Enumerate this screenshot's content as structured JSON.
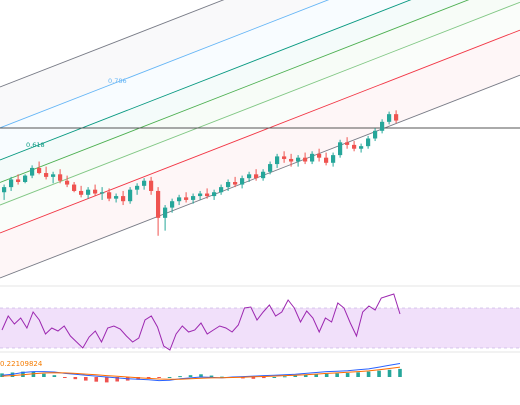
{
  "colors": {
    "up": "#26a69a",
    "down": "#ef5350",
    "rsi_line": "#9c27b0",
    "rsi_band": "#f1e0fa",
    "macd_line": "#2962ff",
    "signal_line": "#ff6d00",
    "hline": "#555555",
    "fib_0": "#787b86",
    "fib_236": "#f23645",
    "fib_382": "#81c784",
    "fib_5": "#4caf50",
    "fib_618": "#089981",
    "fib_786": "#64b5f6",
    "fib_1": "#787b86"
  },
  "fib_labels": {
    "l618": "0.618",
    "l786": "0.786"
  },
  "macd_value_label": "0.22109824",
  "chart_data": [
    {
      "type": "candlestick",
      "title": "",
      "price_line_visible": true,
      "fib_channel_levels": [
        0,
        0.236,
        0.382,
        0.5,
        0.618,
        0.786,
        1
      ],
      "fib_levels_labeled": [
        "0.618",
        "0.786"
      ],
      "candles": [
        [
          4.2,
          4.8,
          3.6,
          4.6
        ],
        [
          4.6,
          5.4,
          4.3,
          5.2
        ],
        [
          5.2,
          5.6,
          4.8,
          5.0
        ],
        [
          5.0,
          5.6,
          4.9,
          5.5
        ],
        [
          5.5,
          6.3,
          5.3,
          6.1
        ],
        [
          6.1,
          6.6,
          5.6,
          5.7
        ],
        [
          5.7,
          6.2,
          5.2,
          5.4
        ],
        [
          5.4,
          5.8,
          4.9,
          5.6
        ],
        [
          5.6,
          6.0,
          4.9,
          5.1
        ],
        [
          5.1,
          5.5,
          4.6,
          4.8
        ],
        [
          4.8,
          5.0,
          4.2,
          4.3
        ],
        [
          4.3,
          4.7,
          3.8,
          4.0
        ],
        [
          4.0,
          4.6,
          3.7,
          4.4
        ],
        [
          4.4,
          4.8,
          3.9,
          4.1
        ],
        [
          4.1,
          4.6,
          3.6,
          4.2
        ],
        [
          4.2,
          4.5,
          3.5,
          3.7
        ],
        [
          3.7,
          4.1,
          3.4,
          3.9
        ],
        [
          3.9,
          4.3,
          3.2,
          3.5
        ],
        [
          3.5,
          4.6,
          3.3,
          4.4
        ],
        [
          4.4,
          4.9,
          4.0,
          4.7
        ],
        [
          4.7,
          5.3,
          4.4,
          5.1
        ],
        [
          5.1,
          5.4,
          4.0,
          4.3
        ],
        [
          4.3,
          4.6,
          0.8,
          2.2
        ],
        [
          2.2,
          3.2,
          1.2,
          3.0
        ],
        [
          3.0,
          3.7,
          2.6,
          3.5
        ],
        [
          3.5,
          4.0,
          3.2,
          3.8
        ],
        [
          3.8,
          4.2,
          3.4,
          3.6
        ],
        [
          3.6,
          4.1,
          3.3,
          3.9
        ],
        [
          3.9,
          4.3,
          3.6,
          4.1
        ],
        [
          4.1,
          4.5,
          3.7,
          3.9
        ],
        [
          3.9,
          4.4,
          3.6,
          4.2
        ],
        [
          4.2,
          4.8,
          4.0,
          4.6
        ],
        [
          4.6,
          5.2,
          4.3,
          5.0
        ],
        [
          5.0,
          5.4,
          4.6,
          4.8
        ],
        [
          4.8,
          5.5,
          4.5,
          5.3
        ],
        [
          5.3,
          5.8,
          5.0,
          5.6
        ],
        [
          5.6,
          6.0,
          5.1,
          5.3
        ],
        [
          5.3,
          6.0,
          5.1,
          5.8
        ],
        [
          5.8,
          6.6,
          5.6,
          6.4
        ],
        [
          6.4,
          7.2,
          6.1,
          7.0
        ],
        [
          7.0,
          7.4,
          6.5,
          6.8
        ],
        [
          6.8,
          7.2,
          6.2,
          6.6
        ],
        [
          6.6,
          7.1,
          6.2,
          6.9
        ],
        [
          6.9,
          7.3,
          6.4,
          6.6
        ],
        [
          6.6,
          7.4,
          6.4,
          7.2
        ],
        [
          7.2,
          7.6,
          6.6,
          6.9
        ],
        [
          6.9,
          7.3,
          6.3,
          6.5
        ],
        [
          6.5,
          7.3,
          6.2,
          7.1
        ],
        [
          7.1,
          8.3,
          6.9,
          8.1
        ],
        [
          8.1,
          8.5,
          7.6,
          7.9
        ],
        [
          7.9,
          8.2,
          7.4,
          7.6
        ],
        [
          7.6,
          8.0,
          7.3,
          7.8
        ],
        [
          7.8,
          8.6,
          7.6,
          8.4
        ],
        [
          8.4,
          9.2,
          8.2,
          9.0
        ],
        [
          9.0,
          9.9,
          8.8,
          9.7
        ],
        [
          9.7,
          10.5,
          9.5,
          10.3
        ],
        [
          10.3,
          10.6,
          9.6,
          9.8
        ]
      ]
    },
    {
      "type": "line",
      "title": "",
      "band": [
        30,
        70
      ],
      "ylim": [
        0,
        100
      ],
      "values": [
        48,
        62,
        54,
        60,
        50,
        66,
        58,
        44,
        50,
        47,
        52,
        42,
        36,
        30,
        41,
        47,
        36,
        50,
        52,
        49,
        42,
        36,
        40,
        58,
        62,
        51,
        32,
        28,
        44,
        52,
        46,
        48,
        55,
        44,
        48,
        52,
        50,
        46,
        53,
        70,
        71,
        58,
        66,
        73,
        62,
        66,
        78,
        70,
        56,
        67,
        60,
        46,
        60,
        56,
        75,
        70,
        55,
        42,
        66,
        72,
        68,
        80,
        82,
        84,
        64
      ]
    },
    {
      "type": "line",
      "title": "",
      "macd": [
        0.1,
        0.15,
        0.25,
        0.3,
        0.3,
        0.28,
        0.2,
        0.15,
        0.1,
        0.05,
        0.0,
        -0.05,
        -0.1,
        -0.12,
        -0.15,
        -0.2,
        -0.18,
        -0.1,
        -0.05,
        0.0,
        -0.02,
        -0.05,
        0.0,
        0.02,
        0.05,
        0.08,
        0.1,
        0.12,
        0.15,
        0.2,
        0.25,
        0.3,
        0.32,
        0.35,
        0.4,
        0.45,
        0.55,
        0.65,
        0.75
      ],
      "signal": [
        0.05,
        0.08,
        0.12,
        0.18,
        0.22,
        0.24,
        0.23,
        0.2,
        0.16,
        0.12,
        0.08,
        0.04,
        0.0,
        -0.04,
        -0.08,
        -0.11,
        -0.13,
        -0.12,
        -0.1,
        -0.07,
        -0.05,
        -0.04,
        -0.03,
        -0.01,
        0.01,
        0.03,
        0.05,
        0.08,
        0.1,
        0.13,
        0.16,
        0.2,
        0.23,
        0.26,
        0.3,
        0.34,
        0.4,
        0.47,
        0.55
      ],
      "histogram": [
        0.2,
        0.25,
        0.3,
        0.28,
        0.18,
        0.1,
        -0.05,
        -0.12,
        -0.2,
        -0.26,
        -0.3,
        -0.25,
        -0.2,
        -0.15,
        -0.1,
        -0.05,
        0.0,
        0.05,
        0.1,
        0.15,
        0.08,
        0.02,
        -0.04,
        -0.08,
        -0.1,
        -0.06,
        0.0,
        0.04,
        0.08,
        0.12,
        0.16,
        0.18,
        0.2,
        0.22,
        0.26,
        0.3,
        0.35,
        0.4,
        0.45
      ]
    }
  ]
}
